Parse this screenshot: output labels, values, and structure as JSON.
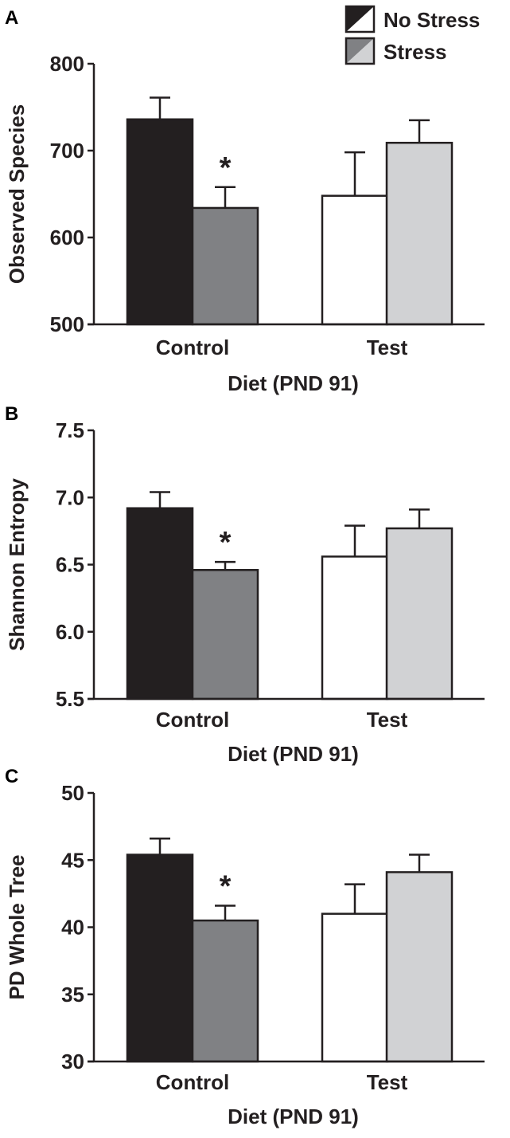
{
  "chart_data": [
    {
      "type": "bar",
      "panel_label": "A",
      "title": "",
      "xlabel": "Diet (PND 91)",
      "ylabel": "Observed Species",
      "ylim": [
        500,
        800
      ],
      "yticks": [
        500,
        600,
        700,
        800
      ],
      "tick_labels": [
        "500",
        "600",
        "700",
        "800"
      ],
      "categories": [
        "Control",
        "Test"
      ],
      "series": [
        {
          "name": "No Stress",
          "values": [
            736,
            648
          ],
          "errors": [
            25,
            50
          ]
        },
        {
          "name": "Stress",
          "values": [
            634,
            709
          ],
          "errors": [
            24,
            26
          ]
        }
      ],
      "annotations": [
        {
          "text": "*",
          "category": "Control",
          "series": "Stress"
        }
      ]
    },
    {
      "type": "bar",
      "panel_label": "B",
      "title": "",
      "xlabel": "Diet (PND 91)",
      "ylabel": "Shannon Entropy",
      "ylim": [
        5.5,
        7.5
      ],
      "yticks": [
        5.5,
        6.0,
        6.5,
        7.0,
        7.5
      ],
      "tick_labels": [
        "5.5",
        "6.0",
        "6.5",
        "7.0",
        "7.5"
      ],
      "categories": [
        "Control",
        "Test"
      ],
      "series": [
        {
          "name": "No Stress",
          "values": [
            6.92,
            6.56
          ],
          "errors": [
            0.12,
            0.23
          ]
        },
        {
          "name": "Stress",
          "values": [
            6.46,
            6.77
          ],
          "errors": [
            0.06,
            0.14
          ]
        }
      ],
      "annotations": [
        {
          "text": "*",
          "category": "Control",
          "series": "Stress"
        }
      ]
    },
    {
      "type": "bar",
      "panel_label": "C",
      "title": "",
      "xlabel": "Diet (PND 91)",
      "ylabel": "PD Whole Tree",
      "ylim": [
        30,
        50
      ],
      "yticks": [
        30,
        35,
        40,
        45,
        50
      ],
      "tick_labels": [
        "30",
        "35",
        "40",
        "45",
        "50"
      ],
      "categories": [
        "Control",
        "Test"
      ],
      "series": [
        {
          "name": "No Stress",
          "values": [
            45.4,
            41.0
          ],
          "errors": [
            1.2,
            2.2
          ]
        },
        {
          "name": "Stress",
          "values": [
            40.5,
            44.1
          ],
          "errors": [
            1.1,
            1.3
          ]
        }
      ],
      "annotations": [
        {
          "text": "*",
          "category": "Control",
          "series": "Stress"
        }
      ]
    }
  ],
  "legend": {
    "placement": "top-right",
    "entries": [
      {
        "label": "No Stress",
        "colors": [
          "#231f20",
          "#ffffff"
        ]
      },
      {
        "label": "Stress",
        "colors": [
          "#808184",
          "#d1d2d4"
        ]
      }
    ]
  },
  "colors": {
    "control_no_stress": "#231f20",
    "control_stress": "#808184",
    "test_no_stress": "#ffffff",
    "test_stress": "#d1d2d4",
    "axis": "#231f20"
  }
}
